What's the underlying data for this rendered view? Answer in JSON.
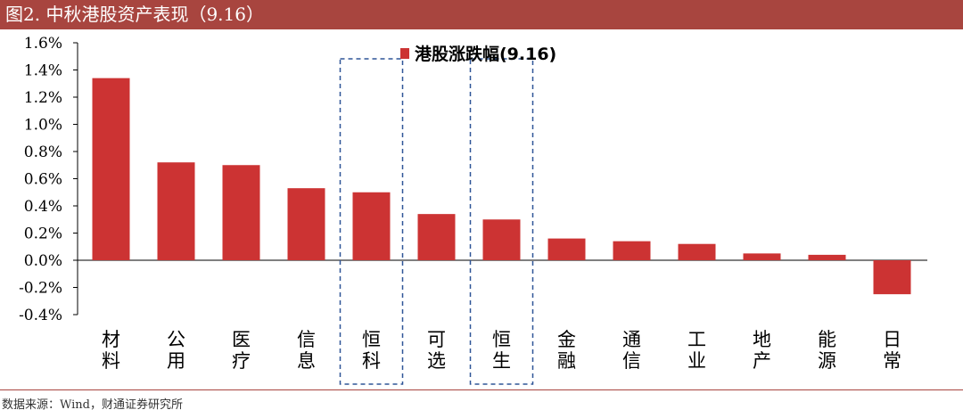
{
  "header": {
    "title": "图2. 中秋港股资产表现（9.16）"
  },
  "footer": {
    "source": "数据来源：Wind，财通证券研究所"
  },
  "colors": {
    "bar": "#cc3333",
    "title_bar": "#a8453f",
    "highlight_box": "#2f5597"
  },
  "chart_data": {
    "type": "bar",
    "categories": [
      "材料",
      "公用",
      "医疗",
      "信息",
      "恒科",
      "可选",
      "恒生",
      "金融",
      "通信",
      "工业",
      "地产",
      "能源",
      "日常"
    ],
    "series": [
      {
        "name": "港股涨跌幅(9.16)",
        "values": [
          1.34,
          0.72,
          0.7,
          0.53,
          0.5,
          0.34,
          0.3,
          0.16,
          0.14,
          0.12,
          0.05,
          0.04,
          -0.25
        ]
      }
    ],
    "unit": "%",
    "ylim": [
      -0.4,
      1.6
    ],
    "yticks": [
      "1.6%",
      "1.4%",
      "1.2%",
      "1.0%",
      "0.8%",
      "0.6%",
      "0.4%",
      "0.2%",
      "0.0%",
      "-0.2%",
      "-0.4%"
    ],
    "ytick_values": [
      1.6,
      1.4,
      1.2,
      1.0,
      0.8,
      0.6,
      0.4,
      0.2,
      0.0,
      -0.2,
      -0.4
    ],
    "legend_position": "top-center",
    "grid": false,
    "highlighted_categories": [
      "恒科",
      "恒生"
    ]
  }
}
